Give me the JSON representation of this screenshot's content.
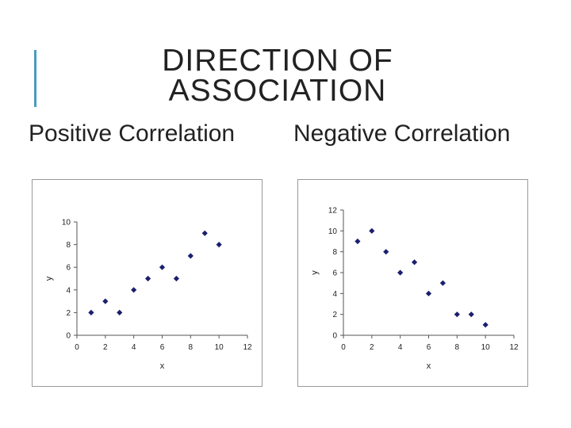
{
  "slide": {
    "title_line1": "DIRECTION OF",
    "title_line2": "ASSOCIATION",
    "accent_color": "#4a9bc1"
  },
  "headings": {
    "left": "Positive Correlation",
    "right": "Negative Correlation"
  },
  "chart_data": [
    {
      "type": "scatter",
      "title": "",
      "xlabel": "x",
      "ylabel": "y",
      "xlim": [
        0,
        12
      ],
      "ylim": [
        0,
        10
      ],
      "xticks": [
        0,
        2,
        4,
        6,
        8,
        10,
        12
      ],
      "yticks": [
        0,
        2,
        4,
        6,
        8,
        10
      ],
      "grid": false,
      "marker": "diamond",
      "marker_color": "#1a1f6e",
      "points": [
        {
          "x": 1,
          "y": 2
        },
        {
          "x": 2,
          "y": 3
        },
        {
          "x": 3,
          "y": 2
        },
        {
          "x": 4,
          "y": 4
        },
        {
          "x": 5,
          "y": 5
        },
        {
          "x": 6,
          "y": 6
        },
        {
          "x": 7,
          "y": 5
        },
        {
          "x": 8,
          "y": 7
        },
        {
          "x": 9,
          "y": 9
        },
        {
          "x": 10,
          "y": 8
        }
      ]
    },
    {
      "type": "scatter",
      "title": "",
      "xlabel": "x",
      "ylabel": "y",
      "xlim": [
        0,
        12
      ],
      "ylim": [
        0,
        12
      ],
      "xticks": [
        0,
        2,
        4,
        6,
        8,
        10,
        12
      ],
      "yticks": [
        0,
        2,
        4,
        6,
        8,
        10,
        12
      ],
      "grid": false,
      "marker": "diamond",
      "marker_color": "#1a1f6e",
      "points": [
        {
          "x": 1,
          "y": 9
        },
        {
          "x": 2,
          "y": 10
        },
        {
          "x": 3,
          "y": 8
        },
        {
          "x": 4,
          "y": 6
        },
        {
          "x": 5,
          "y": 7
        },
        {
          "x": 6,
          "y": 4
        },
        {
          "x": 7,
          "y": 5
        },
        {
          "x": 8,
          "y": 2
        },
        {
          "x": 9,
          "y": 2
        },
        {
          "x": 10,
          "y": 1
        }
      ]
    }
  ]
}
